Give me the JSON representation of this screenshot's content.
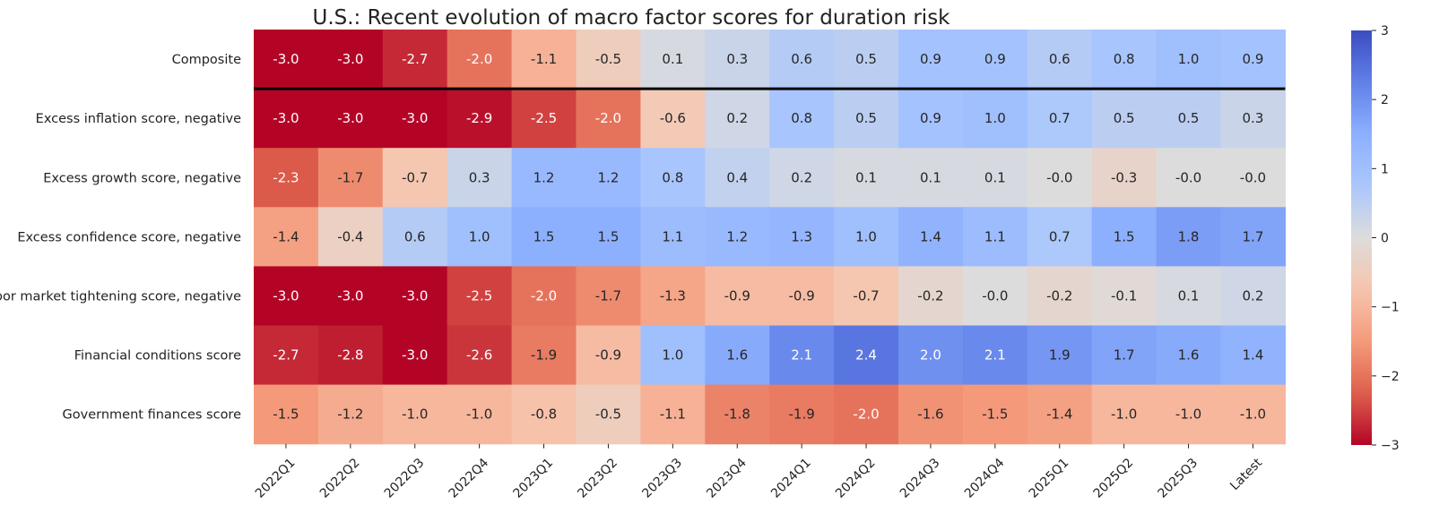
{
  "chart_data": {
    "type": "heatmap",
    "title": "U.S.: Recent evolution of macro factor scores for duration risk",
    "rows": [
      "Composite",
      "Excess inflation score, negative",
      "Excess growth score, negative",
      "Excess confidence score, negative",
      "Labor market tightening score, negative",
      "Financial conditions score",
      "Government finances score"
    ],
    "columns": [
      "2022Q1",
      "2022Q2",
      "2022Q3",
      "2022Q4",
      "2023Q1",
      "2023Q2",
      "2023Q3",
      "2023Q4",
      "2024Q1",
      "2024Q2",
      "2024Q3",
      "2024Q4",
      "2025Q1",
      "2025Q2",
      "2025Q3",
      "Latest"
    ],
    "values": [
      [
        "-3.0",
        "-3.0",
        "-2.7",
        "-2.0",
        "-1.1",
        "-0.5",
        "0.1",
        "0.3",
        "0.6",
        "0.5",
        "0.9",
        "0.9",
        "0.6",
        "0.8",
        "1.0",
        "0.9"
      ],
      [
        "-3.0",
        "-3.0",
        "-3.0",
        "-2.9",
        "-2.5",
        "-2.0",
        "-0.6",
        "0.2",
        "0.8",
        "0.5",
        "0.9",
        "1.0",
        "0.7",
        "0.5",
        "0.5",
        "0.3"
      ],
      [
        "-2.3",
        "-1.7",
        "-0.7",
        "0.3",
        "1.2",
        "1.2",
        "0.8",
        "0.4",
        "0.2",
        "0.1",
        "0.1",
        "0.1",
        "-0.0",
        "-0.3",
        "-0.0",
        "-0.0"
      ],
      [
        "-1.4",
        "-0.4",
        "0.6",
        "1.0",
        "1.5",
        "1.5",
        "1.1",
        "1.2",
        "1.3",
        "1.0",
        "1.4",
        "1.1",
        "0.7",
        "1.5",
        "1.8",
        "1.7"
      ],
      [
        "-3.0",
        "-3.0",
        "-3.0",
        "-2.5",
        "-2.0",
        "-1.7",
        "-1.3",
        "-0.9",
        "-0.9",
        "-0.7",
        "-0.2",
        "-0.0",
        "-0.2",
        "-0.1",
        "0.1",
        "0.2"
      ],
      [
        "-2.7",
        "-2.8",
        "-3.0",
        "-2.6",
        "-1.9",
        "-0.9",
        "1.0",
        "1.6",
        "2.1",
        "2.4",
        "2.0",
        "2.1",
        "1.9",
        "1.7",
        "1.6",
        "1.4"
      ],
      [
        "-1.5",
        "-1.2",
        "-1.0",
        "-1.0",
        "-0.8",
        "-0.5",
        "-1.1",
        "-1.8",
        "-1.9",
        "-2.0",
        "-1.6",
        "-1.5",
        "-1.4",
        "-1.0",
        "-1.0",
        "-1.0"
      ]
    ],
    "colorscale": "coolwarm_r",
    "vmin": -3,
    "vmax": 3,
    "colorbar_ticks": [
      "3",
      "2",
      "1",
      "0",
      "−1",
      "−2",
      "−3"
    ],
    "separator_after_row": "Composite",
    "grid": false
  }
}
